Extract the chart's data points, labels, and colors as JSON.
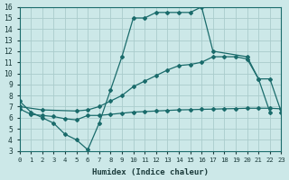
{
  "xlabel": "Humidex (Indice chaleur)",
  "background_color": "#cce8e8",
  "grid_color": "#aacccc",
  "line_color": "#1a6b6b",
  "xlim": [
    0,
    23
  ],
  "ylim": [
    3,
    16
  ],
  "xticks": [
    0,
    1,
    2,
    3,
    4,
    5,
    6,
    7,
    8,
    9,
    10,
    11,
    12,
    13,
    14,
    15,
    16,
    17,
    18,
    19,
    20,
    21,
    22,
    23
  ],
  "yticks": [
    3,
    4,
    5,
    6,
    7,
    8,
    9,
    10,
    11,
    12,
    13,
    14,
    15,
    16
  ],
  "line1_x": [
    0,
    1,
    2,
    3,
    4,
    5,
    6,
    7,
    8,
    9,
    10,
    11,
    12,
    13,
    14,
    15,
    16,
    17,
    20,
    21,
    22
  ],
  "line1_y": [
    7.5,
    6.5,
    6.0,
    5.5,
    4.5,
    4.0,
    3.1,
    5.5,
    8.5,
    11.5,
    15.0,
    15.0,
    15.5,
    15.5,
    15.5,
    15.5,
    16.0,
    12.0,
    11.5,
    9.5,
    6.5
  ],
  "line2_x": [
    0,
    2,
    5,
    6,
    7,
    8,
    9,
    10,
    11,
    12,
    13,
    14,
    15,
    16,
    17,
    18,
    19,
    20,
    21,
    22,
    23
  ],
  "line2_y": [
    7.0,
    6.7,
    6.6,
    6.7,
    7.0,
    7.5,
    8.0,
    8.8,
    9.3,
    9.8,
    10.3,
    10.7,
    10.8,
    11.0,
    11.5,
    11.5,
    11.5,
    11.3,
    9.5,
    9.5,
    6.5
  ],
  "line3_x": [
    0,
    1,
    2,
    3,
    4,
    5,
    6,
    7,
    8,
    9,
    10,
    11,
    12,
    13,
    14,
    15,
    16,
    17,
    18,
    19,
    20,
    21,
    22,
    23
  ],
  "line3_y": [
    6.8,
    6.3,
    6.2,
    6.1,
    5.9,
    5.8,
    6.2,
    6.2,
    6.3,
    6.4,
    6.5,
    6.55,
    6.6,
    6.65,
    6.7,
    6.72,
    6.75,
    6.77,
    6.8,
    6.82,
    6.85,
    6.85,
    6.85,
    6.8
  ]
}
